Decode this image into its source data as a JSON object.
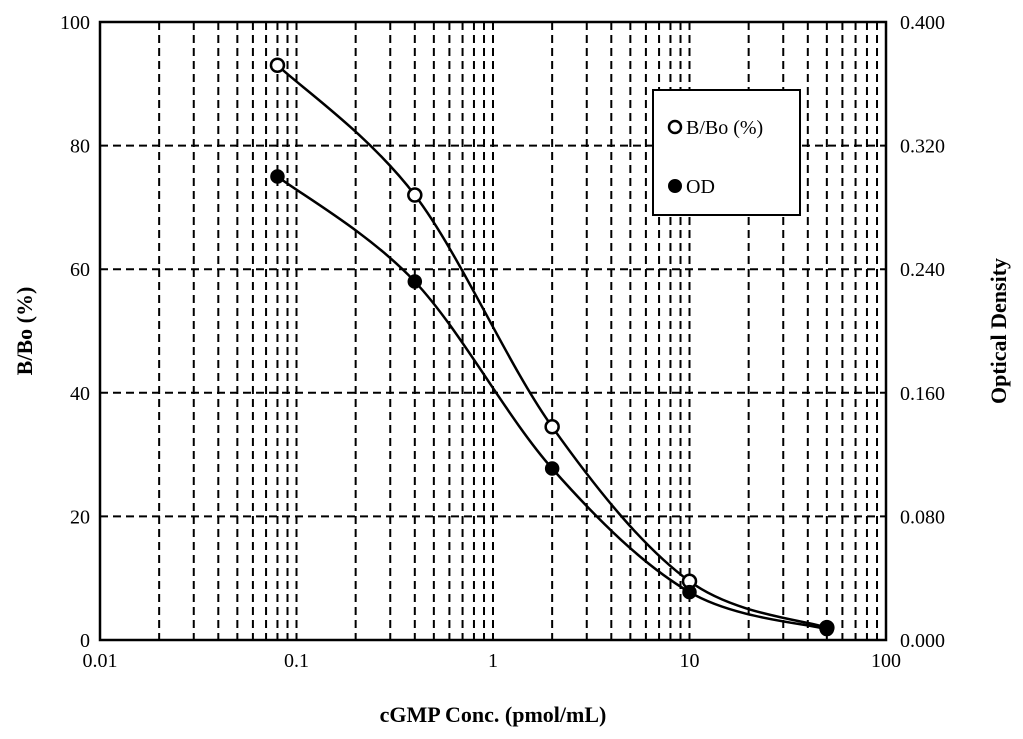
{
  "chart_data": {
    "type": "scatter",
    "xlabel": "cGMP Conc. (pmol/mL)",
    "ylabel": "B/Bo (%)",
    "y2label": "Optical Density",
    "x_scale": "log",
    "xlim": [
      0.01,
      100
    ],
    "ylim": [
      0,
      100
    ],
    "y2lim": [
      0,
      0.4
    ],
    "x_ticks": [
      "0.01",
      "0.1",
      "1",
      "10",
      "100"
    ],
    "y_ticks": [
      "0",
      "20",
      "40",
      "60",
      "80",
      "100"
    ],
    "y2_ticks": [
      "0.000",
      "0.080",
      "0.160",
      "0.240",
      "0.320",
      "0.400"
    ],
    "grid": true,
    "legend_position": "top-right",
    "series": [
      {
        "name": "B/Bo (%)",
        "axis": "left",
        "marker": "open-circle",
        "x": [
          0.08,
          0.4,
          2,
          10,
          50
        ],
        "y": [
          93.0,
          72.0,
          34.5,
          9.5,
          2.0
        ]
      },
      {
        "name": "OD",
        "axis": "right",
        "marker": "filled-circle",
        "x": [
          0.08,
          0.4,
          2,
          10,
          50
        ],
        "y": [
          0.3,
          0.232,
          0.111,
          0.031,
          0.007
        ]
      }
    ],
    "colors": {
      "line": "#000000",
      "marker_fill_open": "#ffffff",
      "marker_fill_filled": "#000000"
    }
  }
}
